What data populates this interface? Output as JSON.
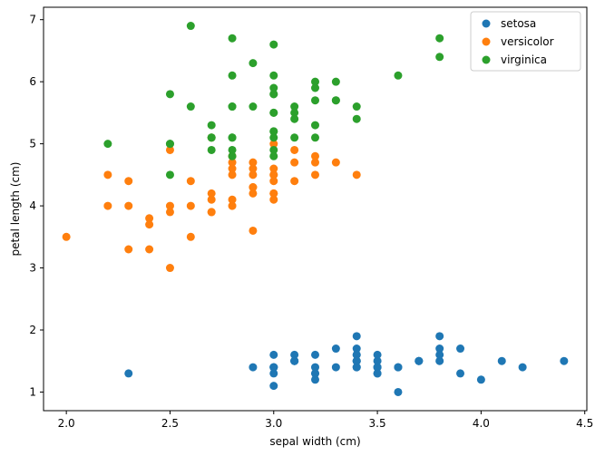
{
  "chart_data": {
    "type": "scatter",
    "title": "",
    "xlabel": "sepal width (cm)",
    "ylabel": "petal length (cm)",
    "xlim": [
      1.89,
      4.51
    ],
    "ylim": [
      0.7,
      7.2
    ],
    "xticks": [
      "2.0",
      "2.5",
      "3.0",
      "3.5",
      "4.0",
      "4.5"
    ],
    "yticks": [
      "1",
      "2",
      "3",
      "4",
      "5",
      "6",
      "7"
    ],
    "grid": false,
    "legend_position": "top-right",
    "series": [
      {
        "name": "setosa",
        "color": "#1f77b4",
        "points": [
          [
            3.5,
            1.4
          ],
          [
            3.0,
            1.4
          ],
          [
            3.2,
            1.3
          ],
          [
            3.1,
            1.5
          ],
          [
            3.6,
            1.4
          ],
          [
            3.9,
            1.7
          ],
          [
            3.4,
            1.4
          ],
          [
            3.4,
            1.5
          ],
          [
            2.9,
            1.4
          ],
          [
            3.1,
            1.5
          ],
          [
            3.7,
            1.5
          ],
          [
            3.4,
            1.6
          ],
          [
            3.0,
            1.4
          ],
          [
            3.0,
            1.1
          ],
          [
            4.0,
            1.2
          ],
          [
            4.4,
            1.5
          ],
          [
            3.9,
            1.3
          ],
          [
            3.5,
            1.4
          ],
          [
            3.8,
            1.7
          ],
          [
            3.8,
            1.5
          ],
          [
            3.4,
            1.7
          ],
          [
            3.7,
            1.5
          ],
          [
            3.6,
            1.0
          ],
          [
            3.3,
            1.7
          ],
          [
            3.4,
            1.9
          ],
          [
            3.0,
            1.6
          ],
          [
            3.4,
            1.6
          ],
          [
            3.5,
            1.5
          ],
          [
            3.4,
            1.4
          ],
          [
            3.2,
            1.6
          ],
          [
            3.1,
            1.6
          ],
          [
            3.4,
            1.5
          ],
          [
            4.1,
            1.5
          ],
          [
            4.2,
            1.4
          ],
          [
            3.1,
            1.5
          ],
          [
            3.2,
            1.2
          ],
          [
            3.5,
            1.3
          ],
          [
            3.6,
            1.4
          ],
          [
            3.0,
            1.3
          ],
          [
            3.4,
            1.5
          ],
          [
            3.5,
            1.3
          ],
          [
            2.3,
            1.3
          ],
          [
            3.2,
            1.3
          ],
          [
            3.5,
            1.6
          ],
          [
            3.8,
            1.9
          ],
          [
            3.0,
            1.4
          ],
          [
            3.8,
            1.6
          ],
          [
            3.2,
            1.4
          ],
          [
            3.7,
            1.5
          ],
          [
            3.3,
            1.4
          ]
        ]
      },
      {
        "name": "versicolor",
        "color": "#ff7f0e",
        "points": [
          [
            3.2,
            4.7
          ],
          [
            3.2,
            4.5
          ],
          [
            3.1,
            4.9
          ],
          [
            2.3,
            4.0
          ],
          [
            2.8,
            4.6
          ],
          [
            2.8,
            4.5
          ],
          [
            3.3,
            4.7
          ],
          [
            2.4,
            3.3
          ],
          [
            2.9,
            4.6
          ],
          [
            2.7,
            3.9
          ],
          [
            2.0,
            3.5
          ],
          [
            3.0,
            4.2
          ],
          [
            2.2,
            4.0
          ],
          [
            2.9,
            4.7
          ],
          [
            2.9,
            3.6
          ],
          [
            3.1,
            4.4
          ],
          [
            3.0,
            4.5
          ],
          [
            2.7,
            4.1
          ],
          [
            2.2,
            4.5
          ],
          [
            2.5,
            3.9
          ],
          [
            3.2,
            4.8
          ],
          [
            2.8,
            4.0
          ],
          [
            2.5,
            4.9
          ],
          [
            2.8,
            4.7
          ],
          [
            2.9,
            4.3
          ],
          [
            3.0,
            4.4
          ],
          [
            2.8,
            4.8
          ],
          [
            3.0,
            5.0
          ],
          [
            2.9,
            4.5
          ],
          [
            2.6,
            3.5
          ],
          [
            2.4,
            3.8
          ],
          [
            2.4,
            3.7
          ],
          [
            2.7,
            3.9
          ],
          [
            2.7,
            5.1
          ],
          [
            3.0,
            4.5
          ],
          [
            3.4,
            4.5
          ],
          [
            3.1,
            4.7
          ],
          [
            2.3,
            4.4
          ],
          [
            3.0,
            4.1
          ],
          [
            2.5,
            4.0
          ],
          [
            2.6,
            4.4
          ],
          [
            3.0,
            4.6
          ],
          [
            2.6,
            4.0
          ],
          [
            2.3,
            3.3
          ],
          [
            2.7,
            4.2
          ],
          [
            3.0,
            4.2
          ],
          [
            2.9,
            4.2
          ],
          [
            2.9,
            4.3
          ],
          [
            2.5,
            3.0
          ],
          [
            2.8,
            4.1
          ]
        ]
      },
      {
        "name": "virginica",
        "color": "#2ca02c",
        "points": [
          [
            3.3,
            6.0
          ],
          [
            2.7,
            5.1
          ],
          [
            3.0,
            5.9
          ],
          [
            2.9,
            5.6
          ],
          [
            3.0,
            5.8
          ],
          [
            3.0,
            6.6
          ],
          [
            2.5,
            4.5
          ],
          [
            2.9,
            6.3
          ],
          [
            2.5,
            5.8
          ],
          [
            3.6,
            6.1
          ],
          [
            3.2,
            5.1
          ],
          [
            2.7,
            5.3
          ],
          [
            3.0,
            5.5
          ],
          [
            2.5,
            5.0
          ],
          [
            2.8,
            5.1
          ],
          [
            3.2,
            5.3
          ],
          [
            3.0,
            5.5
          ],
          [
            3.8,
            6.7
          ],
          [
            2.6,
            6.9
          ],
          [
            2.2,
            5.0
          ],
          [
            3.2,
            5.7
          ],
          [
            2.8,
            4.9
          ],
          [
            2.8,
            6.7
          ],
          [
            2.7,
            4.9
          ],
          [
            3.3,
            5.7
          ],
          [
            3.2,
            6.0
          ],
          [
            2.8,
            4.8
          ],
          [
            3.0,
            4.9
          ],
          [
            2.8,
            5.6
          ],
          [
            3.0,
            5.8
          ],
          [
            2.8,
            6.1
          ],
          [
            3.8,
            6.4
          ],
          [
            2.8,
            5.6
          ],
          [
            2.8,
            5.1
          ],
          [
            2.6,
            5.6
          ],
          [
            3.0,
            6.1
          ],
          [
            3.4,
            5.6
          ],
          [
            3.1,
            5.5
          ],
          [
            3.0,
            4.8
          ],
          [
            3.1,
            5.4
          ],
          [
            3.1,
            5.6
          ],
          [
            3.1,
            5.1
          ],
          [
            2.7,
            5.1
          ],
          [
            3.2,
            5.9
          ],
          [
            3.3,
            5.7
          ],
          [
            3.0,
            5.2
          ],
          [
            2.5,
            5.0
          ],
          [
            3.0,
            5.2
          ],
          [
            3.4,
            5.4
          ],
          [
            3.0,
            5.1
          ]
        ]
      }
    ]
  }
}
